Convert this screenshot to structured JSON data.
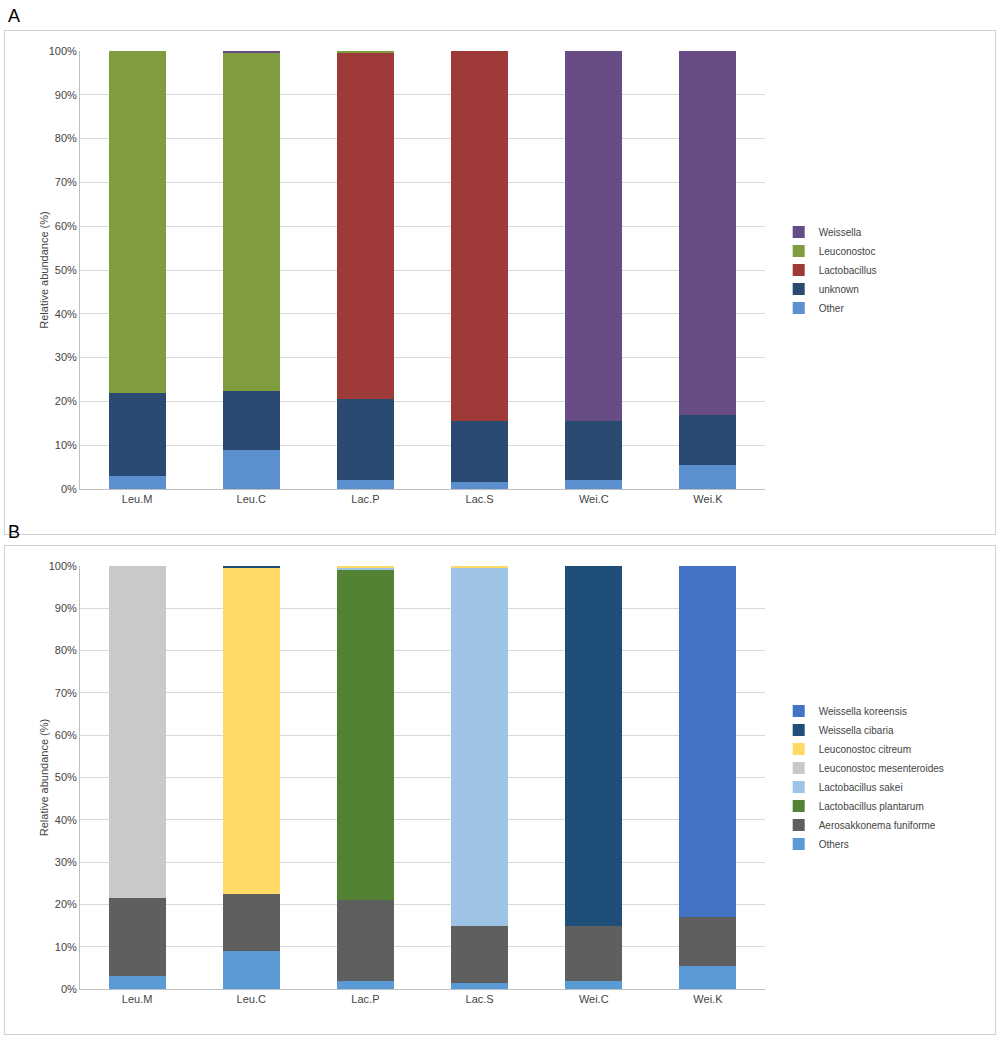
{
  "chart_data": [
    {
      "type": "bar",
      "title": "A",
      "stacked": true,
      "grid": true,
      "legend": "right",
      "categories": [
        "Leu.M",
        "Leu.C",
        "Lac.P",
        "Lac.S",
        "Wei.C",
        "Wei.K"
      ],
      "y_label": "Relative abundance (%)",
      "ylim": [
        0,
        100
      ],
      "yticks": [
        {
          "value": 0,
          "label": "0%"
        },
        {
          "value": 10,
          "label": "10%"
        },
        {
          "value": 20,
          "label": "20%"
        },
        {
          "value": 30,
          "label": "30%"
        },
        {
          "value": 40,
          "label": "40%"
        },
        {
          "value": 50,
          "label": "50%"
        },
        {
          "value": 60,
          "label": "60%"
        },
        {
          "value": 70,
          "label": "70%"
        },
        {
          "value": 80,
          "label": "80%"
        },
        {
          "value": 90,
          "label": "90%"
        },
        {
          "value": 100,
          "label": "100%"
        }
      ],
      "series": [
        {
          "name": "Other",
          "color": "#5b8fcf",
          "values": [
            3,
            9,
            2,
            1.5,
            2,
            5.5
          ]
        },
        {
          "name": "unknown",
          "color": "#2b4a72",
          "values": [
            19,
            13.3,
            18.5,
            14,
            13.5,
            11.5
          ]
        },
        {
          "name": "Lactobacillus",
          "color": "#9e3b39",
          "values": [
            0,
            0,
            79,
            84.5,
            0,
            0
          ]
        },
        {
          "name": "Leuconostoc",
          "color": "#7f9c3f",
          "values": [
            78,
            77.2,
            0.5,
            0,
            0,
            0
          ]
        },
        {
          "name": "Weissella",
          "color": "#674c86",
          "values": [
            0,
            0.5,
            0,
            0,
            84.5,
            83
          ]
        }
      ]
    },
    {
      "type": "bar",
      "title": "B",
      "stacked": true,
      "grid": true,
      "legend": "right",
      "categories": [
        "Leu.M",
        "Leu.C",
        "Lac.P",
        "Lac.S",
        "Wei.C",
        "Wei.K"
      ],
      "y_label": "Relative abundance (%)",
      "ylim": [
        0,
        100
      ],
      "yticks": [
        {
          "value": 0,
          "label": "0%"
        },
        {
          "value": 10,
          "label": "10%"
        },
        {
          "value": 20,
          "label": "20%"
        },
        {
          "value": 30,
          "label": "30%"
        },
        {
          "value": 40,
          "label": "40%"
        },
        {
          "value": 50,
          "label": "50%"
        },
        {
          "value": 60,
          "label": "60%"
        },
        {
          "value": 70,
          "label": "70%"
        },
        {
          "value": 80,
          "label": "80%"
        },
        {
          "value": 90,
          "label": "90%"
        },
        {
          "value": 100,
          "label": "100%"
        }
      ],
      "series": [
        {
          "name": "Others",
          "color": "#5b9bd5",
          "values": [
            3,
            9,
            2,
            1.5,
            2,
            5.5
          ]
        },
        {
          "name": "Aerosakkonema funiforme",
          "color": "#5f5f5f",
          "values": [
            18.5,
            13.5,
            19,
            13.5,
            13,
            11.5
          ]
        },
        {
          "name": "Lactobacillus plantarum",
          "color": "#548235",
          "values": [
            0,
            0,
            78,
            0,
            0,
            0
          ]
        },
        {
          "name": "Lactobacillus sakei",
          "color": "#9dc3e6",
          "values": [
            0,
            0,
            0.7,
            84.7,
            0,
            0
          ]
        },
        {
          "name": "Leuconostoc mesenteroides",
          "color": "#c9c9c9",
          "values": [
            78.5,
            0,
            0,
            0,
            0,
            0
          ]
        },
        {
          "name": "Leuconostoc citreum",
          "color": "#ffd966",
          "values": [
            0,
            77,
            0.3,
            0.3,
            0,
            0
          ]
        },
        {
          "name": "Weissella cibaria",
          "color": "#1f4e79",
          "values": [
            0,
            0.5,
            0,
            0,
            85,
            0
          ]
        },
        {
          "name": "Weissella koreensis",
          "color": "#4472c4",
          "values": [
            0,
            0,
            0,
            0,
            0,
            83
          ]
        }
      ]
    }
  ]
}
